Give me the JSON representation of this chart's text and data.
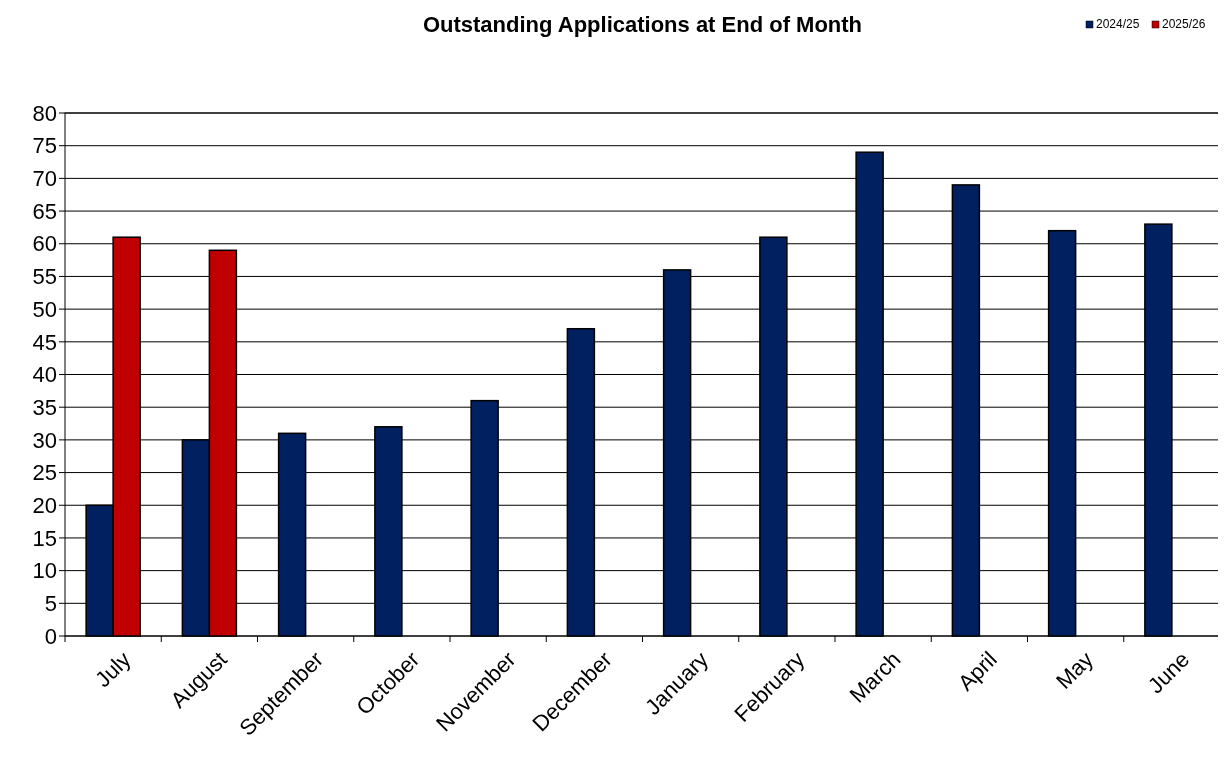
{
  "chart_data": {
    "type": "bar",
    "title": "Outstanding Applications at End of Month",
    "categories": [
      "July",
      "August",
      "September",
      "October",
      "November",
      "December",
      "January",
      "February",
      "March",
      "April",
      "May",
      "June"
    ],
    "series": [
      {
        "name": "2024/25",
        "color": "#002060",
        "values": [
          20,
          30,
          31,
          32,
          36,
          47,
          56,
          61,
          74,
          69,
          62,
          63
        ]
      },
      {
        "name": "2025/26",
        "color": "#c00000",
        "values": [
          61,
          59,
          null,
          null,
          null,
          null,
          null,
          null,
          null,
          null,
          null,
          null
        ]
      }
    ],
    "ylim": [
      0,
      80
    ],
    "yticks": [
      0,
      5,
      10,
      15,
      20,
      25,
      30,
      35,
      40,
      45,
      50,
      55,
      60,
      65,
      70,
      75,
      80
    ],
    "grid": "y",
    "legend": "top right"
  }
}
